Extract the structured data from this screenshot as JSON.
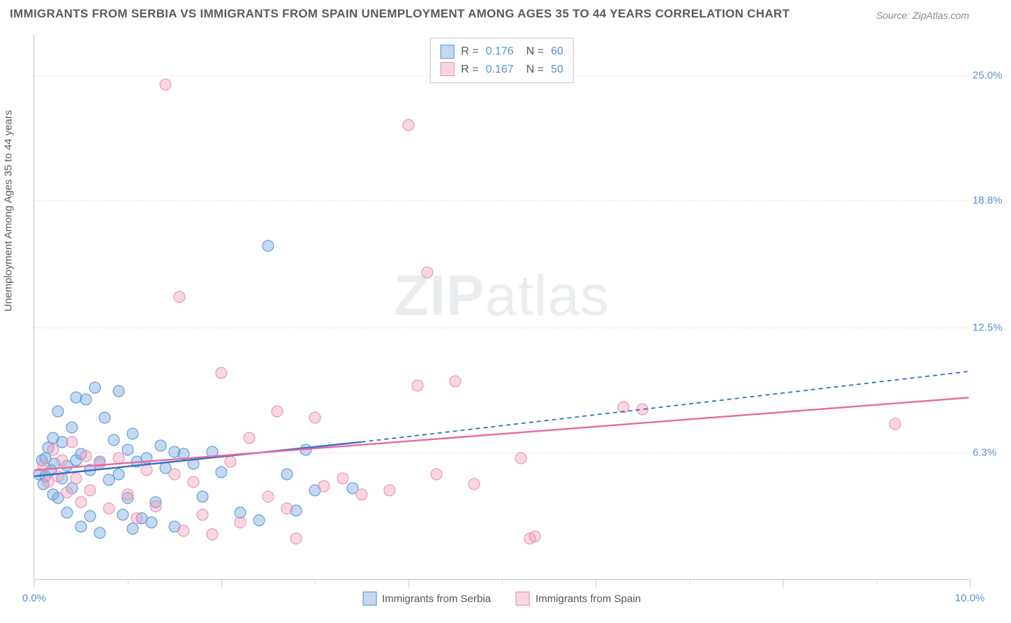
{
  "title": "IMMIGRANTS FROM SERBIA VS IMMIGRANTS FROM SPAIN UNEMPLOYMENT AMONG AGES 35 TO 44 YEARS CORRELATION CHART",
  "source": "Source: ZipAtlas.com",
  "watermark_zip": "ZIP",
  "watermark_atlas": "atlas",
  "ylabel": "Unemployment Among Ages 35 to 44 years",
  "chart": {
    "type": "scatter",
    "xlim": [
      0,
      10
    ],
    "ylim": [
      0,
      27
    ],
    "yticks": [
      {
        "v": 6.3,
        "label": "6.3%"
      },
      {
        "v": 12.5,
        "label": "12.5%"
      },
      {
        "v": 18.8,
        "label": "18.8%"
      },
      {
        "v": 25.0,
        "label": "25.0%"
      }
    ],
    "xlabels": [
      {
        "v": 0,
        "label": "0.0%"
      },
      {
        "v": 10,
        "label": "10.0%"
      }
    ],
    "xtick_major": [
      0,
      2,
      4,
      6,
      8,
      10
    ],
    "xtick_minor": [
      1,
      3,
      5,
      7,
      9
    ],
    "background_color": "#ffffff",
    "grid_color": "#e3e3e3",
    "axis_color": "#c7c7c7",
    "marker_size": 17,
    "series": [
      {
        "name": "Immigrants from Serbia",
        "fill": "rgba(120,170,225,0.45)",
        "stroke": "#5a8fd4",
        "r_label": "R =",
        "r": "0.176",
        "n_label": "N =",
        "n": "60",
        "trend": {
          "x1": 0,
          "y1": 5.1,
          "x2": 3.5,
          "y2": 6.8,
          "stroke": "#2e6fc7",
          "width": 2.4,
          "dash": "none",
          "ext_x2": 10,
          "ext_y2": 10.3,
          "ext_dash": "6 5"
        },
        "points": [
          [
            0.05,
            5.2
          ],
          [
            0.08,
            5.9
          ],
          [
            0.1,
            4.7
          ],
          [
            0.12,
            6.0
          ],
          [
            0.12,
            5.1
          ],
          [
            0.15,
            6.5
          ],
          [
            0.18,
            5.4
          ],
          [
            0.2,
            4.2
          ],
          [
            0.2,
            7.0
          ],
          [
            0.22,
            5.7
          ],
          [
            0.25,
            8.3
          ],
          [
            0.25,
            4.0
          ],
          [
            0.3,
            5.0
          ],
          [
            0.3,
            6.8
          ],
          [
            0.35,
            3.3
          ],
          [
            0.35,
            5.6
          ],
          [
            0.4,
            7.5
          ],
          [
            0.4,
            4.5
          ],
          [
            0.45,
            9.0
          ],
          [
            0.45,
            5.9
          ],
          [
            0.5,
            2.6
          ],
          [
            0.5,
            6.2
          ],
          [
            0.55,
            8.9
          ],
          [
            0.6,
            5.4
          ],
          [
            0.6,
            3.1
          ],
          [
            0.65,
            9.5
          ],
          [
            0.7,
            5.8
          ],
          [
            0.7,
            2.3
          ],
          [
            0.75,
            8.0
          ],
          [
            0.8,
            4.9
          ],
          [
            0.85,
            6.9
          ],
          [
            0.9,
            5.2
          ],
          [
            0.9,
            9.3
          ],
          [
            0.95,
            3.2
          ],
          [
            1.0,
            6.4
          ],
          [
            1.0,
            4.0
          ],
          [
            1.05,
            7.2
          ],
          [
            1.05,
            2.5
          ],
          [
            1.1,
            5.8
          ],
          [
            1.15,
            3.0
          ],
          [
            1.2,
            6.0
          ],
          [
            1.25,
            2.8
          ],
          [
            1.3,
            3.8
          ],
          [
            1.35,
            6.6
          ],
          [
            1.4,
            5.5
          ],
          [
            1.5,
            2.6
          ],
          [
            1.5,
            6.3
          ],
          [
            1.6,
            6.2
          ],
          [
            1.7,
            5.7
          ],
          [
            1.8,
            4.1
          ],
          [
            1.9,
            6.3
          ],
          [
            2.0,
            5.3
          ],
          [
            2.2,
            3.3
          ],
          [
            2.4,
            2.9
          ],
          [
            2.5,
            16.5
          ],
          [
            2.7,
            5.2
          ],
          [
            2.8,
            3.4
          ],
          [
            2.9,
            6.4
          ],
          [
            3.0,
            4.4
          ],
          [
            3.4,
            4.5
          ]
        ]
      },
      {
        "name": "Immigrants from Spain",
        "fill": "rgba(240,160,185,0.42)",
        "stroke": "#e68ab0",
        "r_label": "R =",
        "r": "0.167",
        "n_label": "N =",
        "n": "50",
        "trend": {
          "x1": 0,
          "y1": 5.4,
          "x2": 10,
          "y2": 9.0,
          "stroke": "#e76aa0",
          "width": 2.4,
          "dash": "none"
        },
        "points": [
          [
            0.1,
            5.6
          ],
          [
            0.15,
            4.8
          ],
          [
            0.2,
            6.4
          ],
          [
            0.25,
            5.1
          ],
          [
            0.3,
            5.9
          ],
          [
            0.35,
            4.3
          ],
          [
            0.4,
            6.8
          ],
          [
            0.45,
            5.0
          ],
          [
            0.5,
            3.8
          ],
          [
            0.55,
            6.1
          ],
          [
            0.6,
            4.4
          ],
          [
            0.7,
            5.7
          ],
          [
            0.8,
            3.5
          ],
          [
            0.9,
            6.0
          ],
          [
            1.0,
            4.2
          ],
          [
            1.1,
            3.0
          ],
          [
            1.2,
            5.4
          ],
          [
            1.3,
            3.6
          ],
          [
            1.4,
            24.5
          ],
          [
            1.5,
            5.2
          ],
          [
            1.55,
            14.0
          ],
          [
            1.6,
            2.4
          ],
          [
            1.7,
            4.8
          ],
          [
            1.8,
            3.2
          ],
          [
            1.9,
            2.2
          ],
          [
            2.0,
            10.2
          ],
          [
            2.1,
            5.8
          ],
          [
            2.2,
            2.8
          ],
          [
            2.3,
            7.0
          ],
          [
            2.5,
            4.1
          ],
          [
            2.6,
            8.3
          ],
          [
            2.7,
            3.5
          ],
          [
            2.8,
            2.0
          ],
          [
            3.0,
            8.0
          ],
          [
            3.1,
            4.6
          ],
          [
            3.3,
            5.0
          ],
          [
            3.5,
            4.2
          ],
          [
            3.8,
            4.4
          ],
          [
            4.0,
            22.5
          ],
          [
            4.1,
            9.6
          ],
          [
            4.2,
            15.2
          ],
          [
            4.3,
            5.2
          ],
          [
            4.5,
            9.8
          ],
          [
            4.7,
            4.7
          ],
          [
            5.2,
            6.0
          ],
          [
            5.3,
            2.0
          ],
          [
            5.35,
            2.1
          ],
          [
            6.3,
            8.5
          ],
          [
            6.5,
            8.4
          ],
          [
            9.2,
            7.7
          ]
        ]
      }
    ]
  },
  "legend_bottom": [
    {
      "label": "Immigrants from Serbia",
      "fill": "rgba(120,170,225,0.45)",
      "stroke": "#5a8fd4"
    },
    {
      "label": "Immigrants from Spain",
      "fill": "rgba(240,160,185,0.42)",
      "stroke": "#e68ab0"
    }
  ]
}
